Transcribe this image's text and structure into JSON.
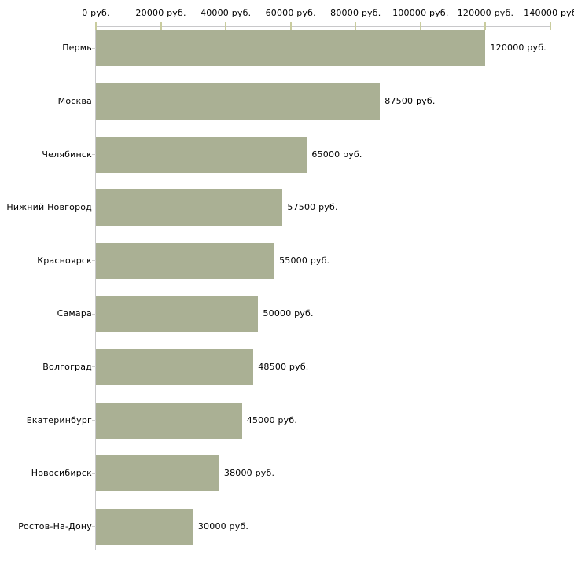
{
  "chart_data": {
    "type": "bar",
    "orientation": "horizontal",
    "title": "",
    "xlabel": "",
    "ylabel": "",
    "grid": false,
    "legend": false,
    "categories": [
      "Пермь",
      "Москва",
      "Челябинск",
      "Нижний Новгород",
      "Красноярск",
      "Самара",
      "Волгоград",
      "Екатеринбург",
      "Новосибирск",
      "Ростов-На-Дону"
    ],
    "values": [
      120000,
      87500,
      65000,
      57500,
      55000,
      50000,
      48500,
      45000,
      38000,
      30000
    ],
    "value_labels": [
      "120000 руб.",
      "87500 руб.",
      "65000 руб.",
      "57500 руб.",
      "55000 руб.",
      "50000 руб.",
      "48500 руб.",
      "45000 руб.",
      "38000 руб.",
      "30000 руб."
    ],
    "x_axis": {
      "position": "top",
      "range": [
        0,
        140000
      ],
      "tick_values": [
        0,
        20000,
        40000,
        60000,
        80000,
        100000,
        120000,
        140000
      ],
      "tick_labels": [
        "0 руб.",
        "20000 руб.",
        "40000 руб.",
        "60000 руб.",
        "80000 руб.",
        "100000 руб.",
        "120000 руб.",
        "140000 руб"
      ]
    },
    "colors": {
      "bar": "#aab094",
      "axis_line": "#c8c8ca",
      "axis_tick": "#c9cc9e",
      "category_tick": "#d0d0d0",
      "text": "#000000",
      "background": "#ffffff"
    }
  }
}
